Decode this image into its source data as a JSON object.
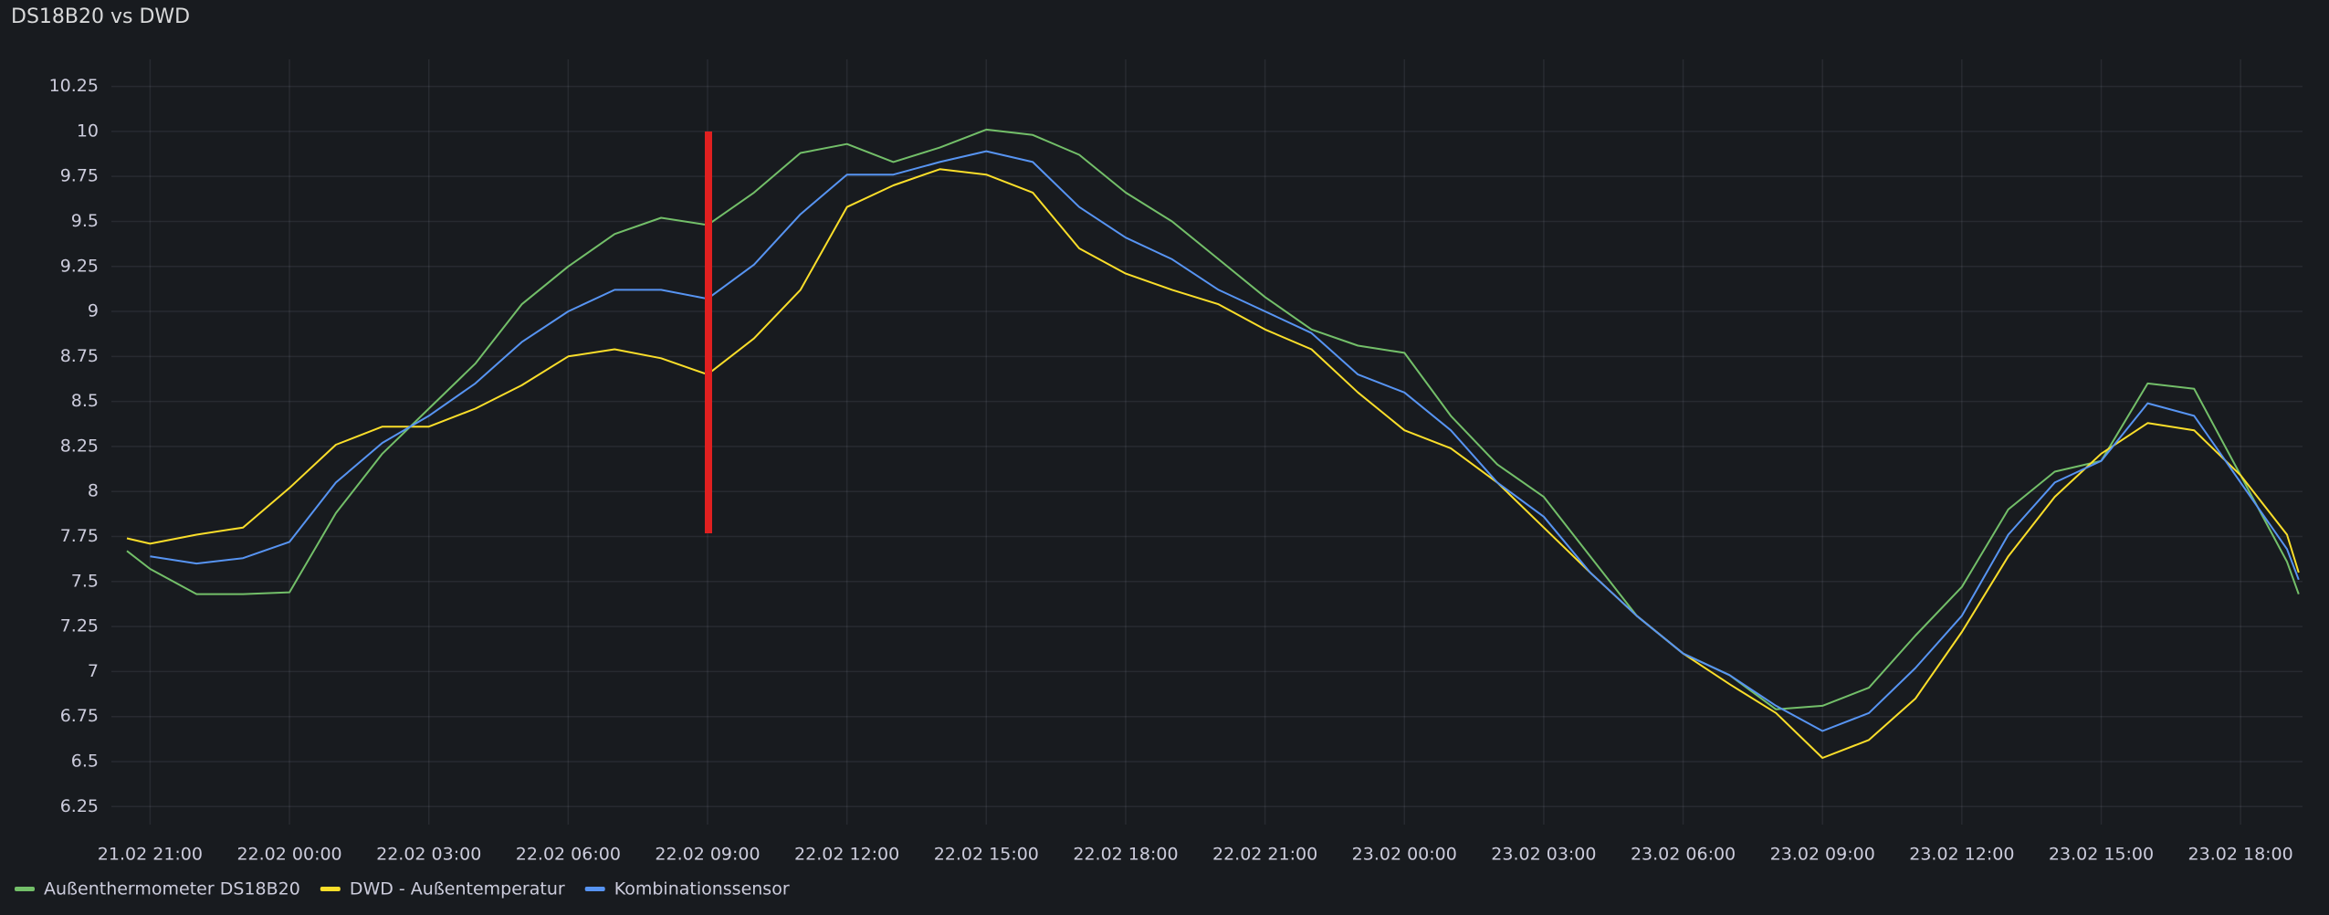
{
  "chart_data": {
    "type": "line",
    "title": "DS18B20 vs DWD",
    "x": [
      "21.02 20:30",
      "21.02 21:00",
      "21.02 22:00",
      "21.02 23:00",
      "22.02 00:00",
      "22.02 01:00",
      "22.02 02:00",
      "22.02 03:00",
      "22.02 04:00",
      "22.02 05:00",
      "22.02 06:00",
      "22.02 07:00",
      "22.02 08:00",
      "22.02 09:00",
      "22.02 10:00",
      "22.02 11:00",
      "22.02 12:00",
      "22.02 13:00",
      "22.02 14:00",
      "22.02 15:00",
      "22.02 16:00",
      "22.02 17:00",
      "22.02 18:00",
      "22.02 19:00",
      "22.02 20:00",
      "22.02 21:00",
      "22.02 22:00",
      "22.02 23:00",
      "23.02 00:00",
      "23.02 01:00",
      "23.02 02:00",
      "23.02 03:00",
      "23.02 04:00",
      "23.02 05:00",
      "23.02 06:00",
      "23.02 07:00",
      "23.02 08:00",
      "23.02 09:00",
      "23.02 10:00",
      "23.02 11:00",
      "23.02 12:00",
      "23.02 13:00",
      "23.02 14:00",
      "23.02 15:00",
      "23.02 16:00",
      "23.02 17:00",
      "23.02 18:00",
      "23.02 19:00",
      "23.02 19:15"
    ],
    "series": [
      {
        "name": "Außenthermometer DS18B20",
        "color": "#73bf69",
        "values": [
          7.67,
          7.57,
          7.43,
          7.43,
          7.44,
          7.88,
          8.21,
          8.46,
          8.71,
          9.04,
          9.25,
          9.43,
          9.52,
          9.48,
          9.66,
          9.88,
          9.93,
          9.83,
          9.91,
          10.01,
          9.98,
          9.87,
          9.66,
          9.5,
          9.29,
          9.08,
          8.9,
          8.81,
          8.77,
          8.42,
          8.15,
          7.97,
          7.64,
          7.31,
          7.1,
          6.98,
          6.79,
          6.81,
          6.91,
          7.2,
          7.47,
          7.9,
          8.11,
          8.17,
          8.6,
          8.57,
          8.09,
          7.61,
          7.43
        ]
      },
      {
        "name": "DWD - Außentemperatur",
        "color": "#fade2a",
        "values": [
          7.74,
          7.71,
          7.76,
          7.8,
          8.02,
          8.26,
          8.36,
          8.36,
          8.46,
          8.59,
          8.75,
          8.79,
          8.74,
          8.65,
          8.85,
          9.12,
          9.58,
          9.7,
          9.79,
          9.76,
          9.66,
          9.35,
          9.21,
          9.12,
          9.04,
          8.9,
          8.79,
          8.55,
          8.34,
          8.24,
          8.05,
          7.8,
          7.55,
          7.31,
          7.1,
          6.93,
          6.77,
          6.52,
          6.62,
          6.85,
          7.22,
          7.64,
          7.97,
          8.21,
          8.38,
          8.34,
          8.09,
          7.76,
          7.55
        ]
      },
      {
        "name": "Kombinationssensor",
        "color": "#5794f2",
        "values": [
          null,
          7.64,
          7.6,
          7.63,
          7.72,
          8.05,
          8.27,
          8.42,
          8.6,
          8.83,
          9.0,
          9.12,
          9.12,
          9.07,
          9.26,
          9.54,
          9.76,
          9.76,
          9.83,
          9.89,
          9.83,
          9.58,
          9.41,
          9.29,
          9.12,
          9.0,
          8.88,
          8.65,
          8.55,
          8.34,
          8.05,
          7.86,
          7.55,
          7.31,
          7.1,
          6.98,
          6.81,
          6.67,
          6.77,
          7.02,
          7.31,
          7.76,
          8.05,
          8.17,
          8.49,
          8.42,
          8.05,
          7.68,
          7.51
        ]
      }
    ],
    "xlim": [
      "21.02 20:10",
      "23.02 19:20"
    ],
    "xticks": [
      "21.02 21:00",
      "22.02 00:00",
      "22.02 03:00",
      "22.02 06:00",
      "22.02 09:00",
      "22.02 12:00",
      "22.02 15:00",
      "22.02 18:00",
      "22.02 21:00",
      "23.02 00:00",
      "23.02 03:00",
      "23.02 06:00",
      "23.02 09:00",
      "23.02 12:00",
      "23.02 15:00",
      "23.02 18:00"
    ],
    "ylim": [
      6.15,
      10.4
    ],
    "yticks": [
      6.25,
      6.5,
      6.75,
      7,
      7.25,
      7.5,
      7.75,
      8,
      8.25,
      8.5,
      8.75,
      9,
      9.25,
      9.5,
      9.75,
      10,
      10.25
    ],
    "grid": true
  }
}
